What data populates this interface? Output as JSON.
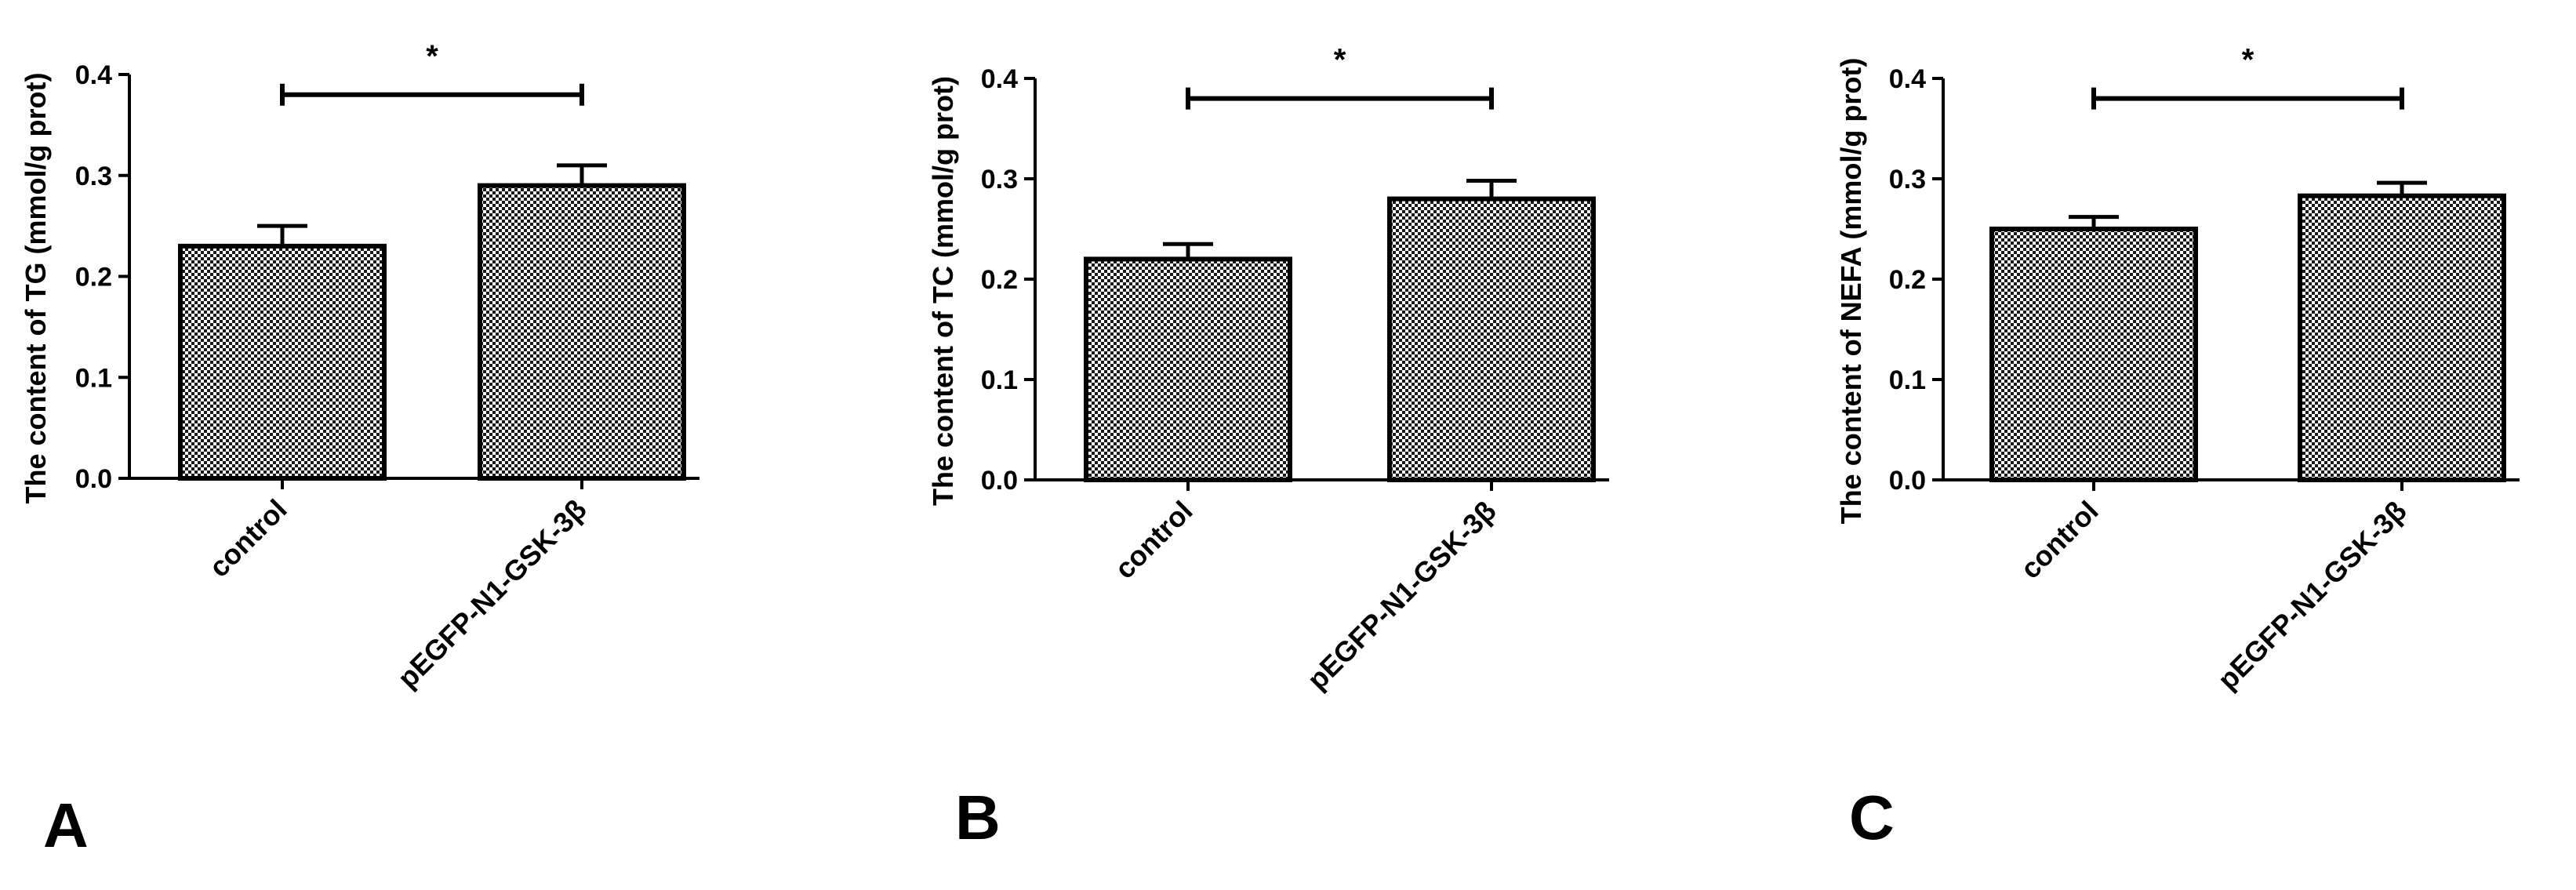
{
  "chart_data": [
    {
      "type": "bar",
      "panel": "A",
      "categories": [
        "control",
        "pEGFP-N1-GSK-3β"
      ],
      "values": [
        0.23,
        0.29
      ],
      "errors": [
        0.02,
        0.02
      ],
      "ylabel": "The content of TG (mmol/g prot)",
      "xlabel": "",
      "ylim": [
        0,
        0.4
      ],
      "yticks": [
        "0.0",
        "0.1",
        "0.2",
        "0.3",
        "0.4"
      ],
      "significance": "*",
      "bar_pattern": "checkered"
    },
    {
      "type": "bar",
      "panel": "B",
      "categories": [
        "control",
        "pEGFP-N1-GSK-3β"
      ],
      "values": [
        0.22,
        0.28
      ],
      "errors": [
        0.015,
        0.018
      ],
      "ylabel": "The content of  TC (mmol/g prot)",
      "xlabel": "",
      "ylim": [
        0,
        0.4
      ],
      "yticks": [
        "0.0",
        "0.1",
        "0.2",
        "0.3",
        "0.4"
      ],
      "significance": "*",
      "bar_pattern": "checkered"
    },
    {
      "type": "bar",
      "panel": "C",
      "categories": [
        "control",
        "pEGFP-N1-GSK-3β"
      ],
      "values": [
        0.25,
        0.283
      ],
      "errors": [
        0.012,
        0.013
      ],
      "ylabel": "The content of  NEFA (mmol/g prot)",
      "xlabel": "",
      "ylim": [
        0,
        0.4
      ],
      "yticks": [
        "0.0",
        "0.1",
        "0.2",
        "0.3",
        "0.4"
      ],
      "significance": "*",
      "bar_pattern": "checkered"
    }
  ],
  "colors": {
    "bar_stroke": "#000000",
    "pattern_dark": "#1a1a1a",
    "pattern_light": "#ffffff",
    "axis": "#000000"
  }
}
